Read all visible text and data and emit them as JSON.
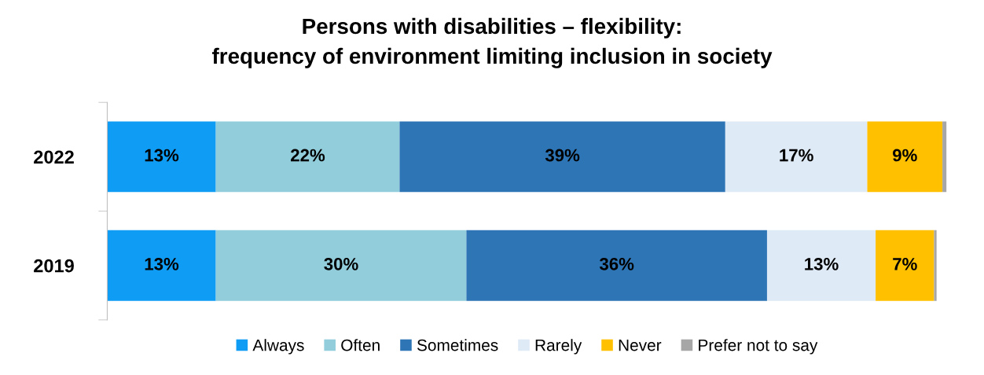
{
  "chart_data": {
    "type": "bar",
    "orientation": "horizontal",
    "stacked": true,
    "title": "Persons with disabilities – flexibility:\nfrequency of environment limiting inclusion in society",
    "categories": [
      "2022",
      "2019"
    ],
    "series": [
      {
        "name": "Always",
        "color": "#0f9cf5",
        "values": [
          13,
          13
        ],
        "value_labels": [
          "13%",
          "13%"
        ]
      },
      {
        "name": "Often",
        "color": "#92cddc",
        "values": [
          22,
          30
        ],
        "value_labels": [
          "22%",
          "30%"
        ]
      },
      {
        "name": "Sometimes",
        "color": "#2e75b6",
        "values": [
          39,
          36
        ],
        "value_labels": [
          "39%",
          "36%"
        ]
      },
      {
        "name": "Rarely",
        "color": "#deeaf6",
        "values": [
          17,
          13
        ],
        "value_labels": [
          "17%",
          "13%"
        ]
      },
      {
        "name": "Never",
        "color": "#ffc000",
        "values": [
          9,
          7
        ],
        "value_labels": [
          "9%",
          "7%"
        ]
      },
      {
        "name": "Prefer not to say",
        "color": "#a6a6a6",
        "values": [
          0.5,
          0.3
        ],
        "value_labels": [
          null,
          null
        ]
      }
    ],
    "legend": "bottom",
    "grid": false
  }
}
